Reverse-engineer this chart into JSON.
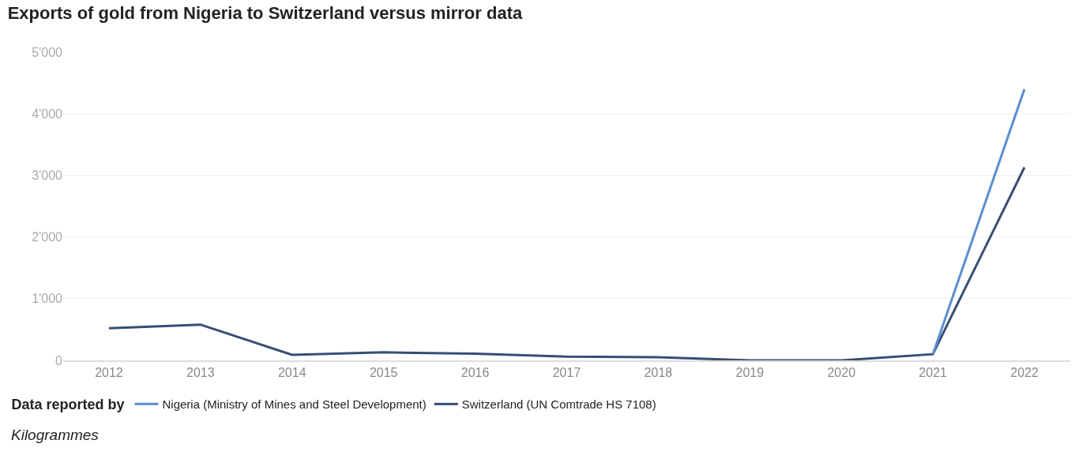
{
  "chart_data": {
    "type": "line",
    "title": "Exports of gold from Nigeria to Switzerland versus mirror data",
    "categories": [
      "2012",
      "2013",
      "2014",
      "2015",
      "2016",
      "2017",
      "2018",
      "2019",
      "2020",
      "2021",
      "2022"
    ],
    "series": [
      {
        "name": "Nigeria (Ministry of Mines and Steel Development)",
        "color": "#5b8fd0",
        "values": [
          null,
          null,
          null,
          null,
          null,
          null,
          null,
          null,
          null,
          100,
          4400
        ]
      },
      {
        "name": "Switzerland (UN Comtrade HS 7108)",
        "color": "#374e73",
        "values": [
          520,
          580,
          90,
          130,
          110,
          60,
          50,
          0,
          0,
          100,
          3130
        ]
      }
    ],
    "ylim": [
      0,
      5000
    ],
    "yticks": [
      0,
      {
        "value": 1000,
        "label": "1'000"
      },
      {
        "value": 2000,
        "label": "2'000"
      },
      {
        "value": 3000,
        "label": "3'000"
      },
      {
        "value": 4000,
        "label": "4'000"
      },
      {
        "value": 5000,
        "label": "5'000"
      }
    ],
    "grid": "y",
    "legend": "bottom left",
    "legend_title": "Data reported by",
    "marker": "none",
    "line_style": "solid",
    "annotations": [
      "Kilogrammes"
    ]
  }
}
